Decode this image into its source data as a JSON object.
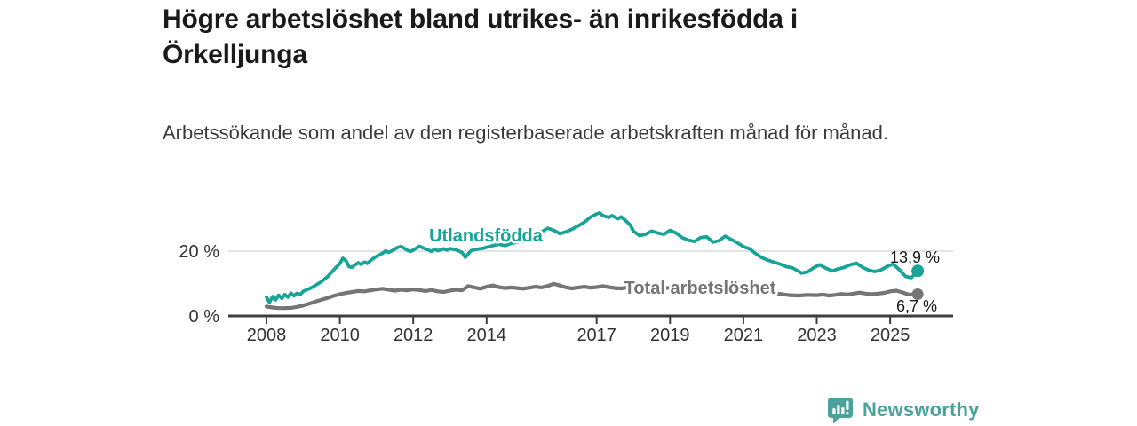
{
  "header": {
    "title_lines": [
      "Högre arbetslöshet bland utrikes- än inrikesfödda i",
      "Örkelljunga"
    ],
    "subtitle": "Arbetssökande som andel av den registerbaserade arbetskraften månad för månad."
  },
  "branding": {
    "logo_text": "Newsworthy",
    "logo_icon": "bar-chart-speech-bubble-icon",
    "brand_color": "#4ba29a"
  },
  "chart_data": {
    "type": "line",
    "title": "Högre arbetslöshet bland utrikes- än inrikesfödda i Örkelljunga",
    "subtitle": "Arbetssökande som andel av den registerbaserade arbetskraften månad för månad.",
    "xlabel": "",
    "ylabel": "",
    "ylim": [
      0,
      33
    ],
    "xlim": [
      2007.8,
      2026.5
    ],
    "grid_values": [
      20
    ],
    "y_tick_labels": [
      "0 %",
      "20 %"
    ],
    "x_ticks": [
      2008,
      2010,
      2012,
      2014,
      2017,
      2019,
      2021,
      2023,
      2025
    ],
    "legend_position": "inline-labels",
    "series": [
      {
        "name": "Utlandsfödda",
        "color": "#17a497",
        "end_label": "13,9 %",
        "end_value": 13.9,
        "points": [
          [
            2008.0,
            5.8
          ],
          [
            2008.08,
            4.2
          ],
          [
            2008.17,
            6.0
          ],
          [
            2008.25,
            5.0
          ],
          [
            2008.33,
            6.4
          ],
          [
            2008.42,
            5.4
          ],
          [
            2008.5,
            6.6
          ],
          [
            2008.58,
            5.8
          ],
          [
            2008.67,
            7.0
          ],
          [
            2008.75,
            6.2
          ],
          [
            2008.83,
            7.0
          ],
          [
            2008.92,
            6.6
          ],
          [
            2009.0,
            7.6
          ],
          [
            2009.17,
            8.4
          ],
          [
            2009.33,
            9.4
          ],
          [
            2009.5,
            10.6
          ],
          [
            2009.67,
            12.2
          ],
          [
            2009.83,
            14.2
          ],
          [
            2010.0,
            16.2
          ],
          [
            2010.08,
            17.8
          ],
          [
            2010.17,
            17.0
          ],
          [
            2010.25,
            15.2
          ],
          [
            2010.33,
            15.0
          ],
          [
            2010.42,
            15.8
          ],
          [
            2010.5,
            16.4
          ],
          [
            2010.58,
            15.9
          ],
          [
            2010.67,
            16.6
          ],
          [
            2010.75,
            16.2
          ],
          [
            2010.83,
            17.0
          ],
          [
            2010.92,
            17.8
          ],
          [
            2011.0,
            18.4
          ],
          [
            2011.17,
            19.4
          ],
          [
            2011.25,
            20.1
          ],
          [
            2011.33,
            19.6
          ],
          [
            2011.5,
            20.6
          ],
          [
            2011.58,
            21.2
          ],
          [
            2011.67,
            21.4
          ],
          [
            2011.75,
            20.9
          ],
          [
            2011.83,
            20.3
          ],
          [
            2011.92,
            19.9
          ],
          [
            2012.0,
            20.3
          ],
          [
            2012.17,
            21.5
          ],
          [
            2012.25,
            21.1
          ],
          [
            2012.33,
            20.7
          ],
          [
            2012.5,
            19.9
          ],
          [
            2012.58,
            20.6
          ],
          [
            2012.67,
            20.1
          ],
          [
            2012.83,
            20.7
          ],
          [
            2012.92,
            20.3
          ],
          [
            2013.0,
            20.8
          ],
          [
            2013.17,
            20.4
          ],
          [
            2013.33,
            19.6
          ],
          [
            2013.42,
            18.1
          ],
          [
            2013.58,
            20.2
          ],
          [
            2013.75,
            20.6
          ],
          [
            2013.92,
            20.9
          ],
          [
            2014.0,
            21.2
          ],
          [
            2014.17,
            21.7
          ],
          [
            2014.33,
            22.1
          ],
          [
            2014.5,
            21.7
          ],
          [
            2014.67,
            22.4
          ],
          [
            2014.83,
            22.7
          ],
          [
            2015.0,
            23.1
          ],
          [
            2015.17,
            23.6
          ],
          [
            2015.33,
            24.2
          ],
          [
            2015.5,
            26.0
          ],
          [
            2015.67,
            27.1
          ],
          [
            2015.83,
            26.4
          ],
          [
            2016.0,
            25.4
          ],
          [
            2016.17,
            26.0
          ],
          [
            2016.33,
            26.8
          ],
          [
            2016.5,
            27.8
          ],
          [
            2016.67,
            29.0
          ],
          [
            2016.83,
            30.5
          ],
          [
            2017.0,
            31.5
          ],
          [
            2017.08,
            31.8
          ],
          [
            2017.17,
            31.0
          ],
          [
            2017.33,
            30.4
          ],
          [
            2017.42,
            31.0
          ],
          [
            2017.58,
            30.0
          ],
          [
            2017.67,
            30.6
          ],
          [
            2017.83,
            29.0
          ],
          [
            2017.92,
            28.0
          ],
          [
            2018.0,
            26.2
          ],
          [
            2018.17,
            24.8
          ],
          [
            2018.33,
            25.2
          ],
          [
            2018.5,
            26.2
          ],
          [
            2018.67,
            25.6
          ],
          [
            2018.83,
            25.2
          ],
          [
            2019.0,
            26.4
          ],
          [
            2019.17,
            25.6
          ],
          [
            2019.33,
            24.2
          ],
          [
            2019.5,
            23.4
          ],
          [
            2019.67,
            23.0
          ],
          [
            2019.83,
            24.2
          ],
          [
            2020.0,
            24.4
          ],
          [
            2020.17,
            22.8
          ],
          [
            2020.33,
            23.2
          ],
          [
            2020.5,
            24.6
          ],
          [
            2020.67,
            23.6
          ],
          [
            2020.83,
            22.6
          ],
          [
            2021.0,
            21.4
          ],
          [
            2021.17,
            20.7
          ],
          [
            2021.33,
            19.3
          ],
          [
            2021.5,
            18.0
          ],
          [
            2021.67,
            17.2
          ],
          [
            2021.83,
            16.6
          ],
          [
            2022.0,
            16.0
          ],
          [
            2022.17,
            15.2
          ],
          [
            2022.33,
            14.9
          ],
          [
            2022.5,
            13.8
          ],
          [
            2022.58,
            13.2
          ],
          [
            2022.75,
            13.6
          ],
          [
            2022.92,
            14.9
          ],
          [
            2023.08,
            15.8
          ],
          [
            2023.25,
            14.7
          ],
          [
            2023.42,
            13.9
          ],
          [
            2023.58,
            14.5
          ],
          [
            2023.75,
            15.0
          ],
          [
            2023.92,
            15.8
          ],
          [
            2024.08,
            16.3
          ],
          [
            2024.25,
            15.0
          ],
          [
            2024.42,
            14.1
          ],
          [
            2024.58,
            13.7
          ],
          [
            2024.75,
            14.2
          ],
          [
            2024.92,
            15.3
          ],
          [
            2025.08,
            16.0
          ],
          [
            2025.25,
            14.3
          ],
          [
            2025.42,
            12.2
          ],
          [
            2025.58,
            11.8
          ],
          [
            2025.75,
            13.9
          ]
        ]
      },
      {
        "name": "Total arbetslöshet",
        "color": "#757575",
        "end_label": "6,7 %",
        "end_value": 6.7,
        "points": [
          [
            2008.0,
            2.9
          ],
          [
            2008.17,
            2.6
          ],
          [
            2008.33,
            2.4
          ],
          [
            2008.5,
            2.4
          ],
          [
            2008.67,
            2.5
          ],
          [
            2008.83,
            2.8
          ],
          [
            2009.0,
            3.2
          ],
          [
            2009.17,
            3.8
          ],
          [
            2009.33,
            4.4
          ],
          [
            2009.5,
            5.0
          ],
          [
            2009.67,
            5.6
          ],
          [
            2009.83,
            6.2
          ],
          [
            2010.0,
            6.7
          ],
          [
            2010.17,
            7.1
          ],
          [
            2010.33,
            7.4
          ],
          [
            2010.5,
            7.7
          ],
          [
            2010.67,
            7.6
          ],
          [
            2010.83,
            7.9
          ],
          [
            2011.0,
            8.2
          ],
          [
            2011.17,
            8.4
          ],
          [
            2011.33,
            8.1
          ],
          [
            2011.5,
            7.8
          ],
          [
            2011.67,
            8.1
          ],
          [
            2011.83,
            7.9
          ],
          [
            2012.0,
            8.2
          ],
          [
            2012.17,
            8.0
          ],
          [
            2012.33,
            7.7
          ],
          [
            2012.5,
            8.0
          ],
          [
            2012.67,
            7.6
          ],
          [
            2012.83,
            7.4
          ],
          [
            2013.0,
            7.8
          ],
          [
            2013.17,
            8.1
          ],
          [
            2013.33,
            7.9
          ],
          [
            2013.5,
            9.2
          ],
          [
            2013.67,
            8.8
          ],
          [
            2013.83,
            8.4
          ],
          [
            2014.0,
            9.0
          ],
          [
            2014.17,
            9.4
          ],
          [
            2014.33,
            8.9
          ],
          [
            2014.5,
            8.6
          ],
          [
            2014.67,
            8.8
          ],
          [
            2014.83,
            8.6
          ],
          [
            2015.0,
            8.4
          ],
          [
            2015.17,
            8.7
          ],
          [
            2015.33,
            9.0
          ],
          [
            2015.5,
            8.8
          ],
          [
            2015.67,
            9.3
          ],
          [
            2015.83,
            9.9
          ],
          [
            2016.0,
            9.4
          ],
          [
            2016.17,
            8.8
          ],
          [
            2016.33,
            8.5
          ],
          [
            2016.5,
            8.8
          ],
          [
            2016.67,
            9.0
          ],
          [
            2016.83,
            8.7
          ],
          [
            2017.0,
            8.9
          ],
          [
            2017.17,
            9.2
          ],
          [
            2017.33,
            8.9
          ],
          [
            2017.5,
            8.6
          ],
          [
            2017.67,
            8.5
          ],
          [
            2017.83,
            8.8
          ],
          [
            2018.0,
            8.6
          ],
          [
            2018.25,
            8.3
          ],
          [
            2018.5,
            8.6
          ],
          [
            2018.75,
            8.4
          ],
          [
            2019.0,
            8.7
          ],
          [
            2019.33,
            8.3
          ],
          [
            2019.67,
            8.1
          ],
          [
            2020.0,
            8.5
          ],
          [
            2020.33,
            8.7
          ],
          [
            2020.67,
            8.4
          ],
          [
            2021.0,
            8.1
          ],
          [
            2021.33,
            7.7
          ],
          [
            2021.67,
            7.2
          ],
          [
            2022.0,
            6.8
          ],
          [
            2022.25,
            6.4
          ],
          [
            2022.5,
            6.3
          ],
          [
            2022.75,
            6.5
          ],
          [
            2023.0,
            6.4
          ],
          [
            2023.17,
            6.6
          ],
          [
            2023.33,
            6.3
          ],
          [
            2023.5,
            6.5
          ],
          [
            2023.67,
            6.8
          ],
          [
            2023.83,
            6.6
          ],
          [
            2024.0,
            6.9
          ],
          [
            2024.17,
            7.2
          ],
          [
            2024.33,
            6.9
          ],
          [
            2024.5,
            6.7
          ],
          [
            2024.67,
            6.9
          ],
          [
            2024.83,
            7.1
          ],
          [
            2025.0,
            7.6
          ],
          [
            2025.17,
            7.8
          ],
          [
            2025.33,
            7.3
          ],
          [
            2025.5,
            6.6
          ],
          [
            2025.75,
            6.7
          ]
        ]
      }
    ]
  }
}
